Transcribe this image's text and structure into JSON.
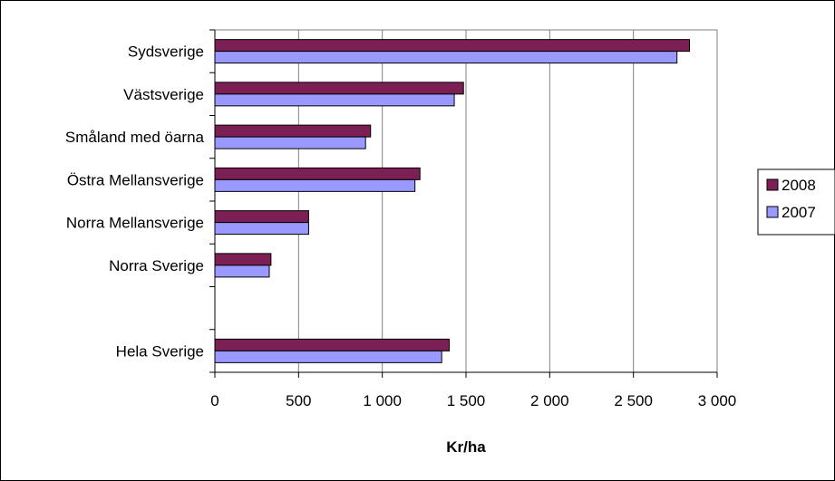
{
  "chart_data": {
    "type": "bar",
    "orientation": "horizontal",
    "categories": [
      "Sydsverige",
      "Västsverige",
      "Småland med öarna",
      "Östra Mellansverige",
      "Norra Mellansverige",
      "Norra Sverige",
      "",
      "Hela Sverige"
    ],
    "series": [
      {
        "name": "2008",
        "color": "#7B1F54",
        "values": [
          2835,
          1485,
          930,
          1225,
          560,
          335,
          null,
          1400
        ]
      },
      {
        "name": "2007",
        "color": "#9999FF",
        "values": [
          2760,
          1430,
          900,
          1195,
          560,
          325,
          null,
          1355
        ]
      }
    ],
    "xlabel": "Kr/ha",
    "xlim": [
      0,
      3000
    ],
    "xticks": [
      0,
      500,
      1000,
      1500,
      2000,
      2500,
      3000
    ],
    "xtick_labels": [
      "0",
      "500",
      "1 000",
      "1 500",
      "2 000",
      "2 500",
      "3 000"
    ],
    "grid": "vertical",
    "legend_position": "right"
  }
}
